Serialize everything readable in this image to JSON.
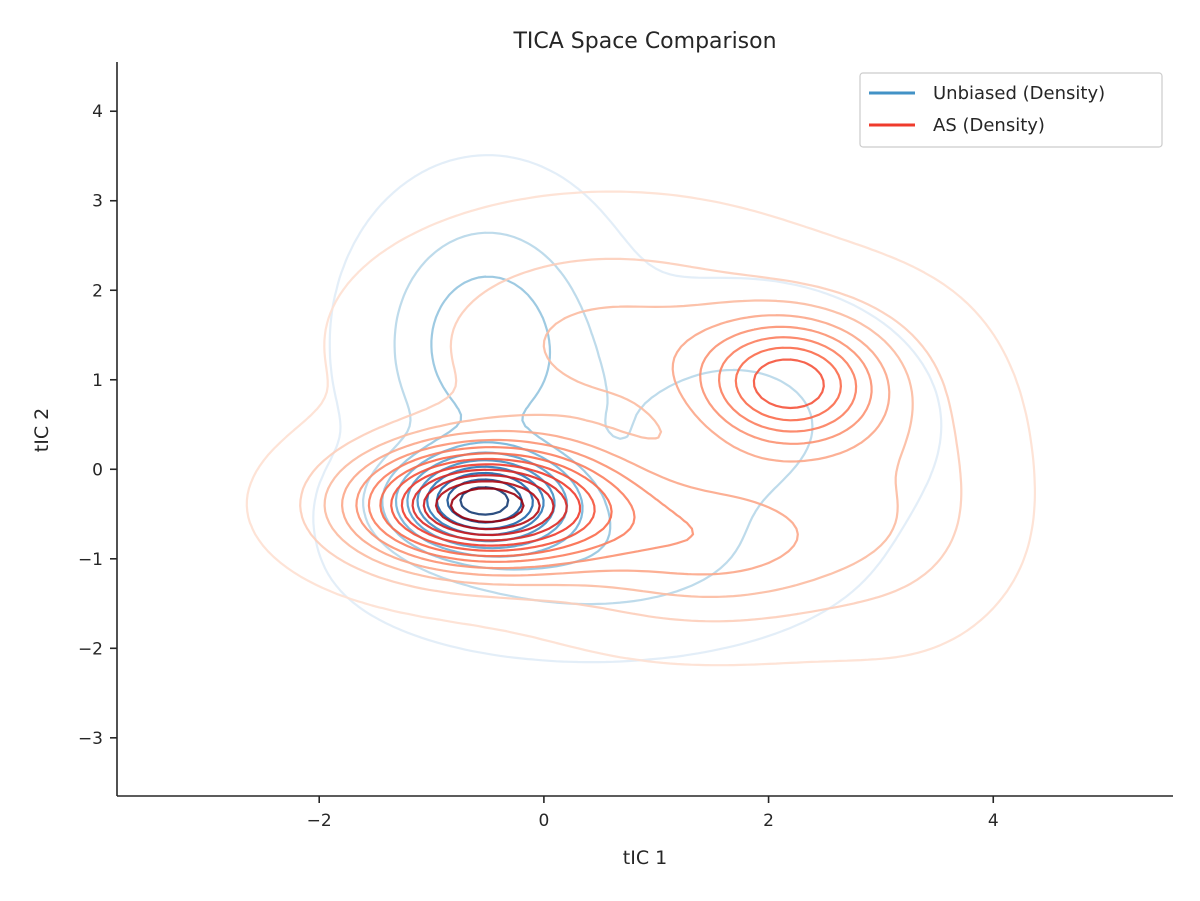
{
  "chart_data": {
    "type": "contour",
    "title": "TICA Space Comparison",
    "xlabel": "tIC 1",
    "ylabel": "tIC 2",
    "xlim": [
      -3.8,
      5.6
    ],
    "ylim": [
      -3.65,
      4.55
    ],
    "xticks": [
      -2,
      0,
      2,
      4
    ],
    "yticks": [
      -3,
      -2,
      -1,
      0,
      1,
      2,
      3,
      4
    ],
    "xtick_labels": [
      "−2",
      "0",
      "2",
      "4"
    ],
    "ytick_labels": [
      "−3",
      "−2",
      "−1",
      "0",
      "1",
      "2",
      "3",
      "4"
    ],
    "grid": false,
    "legend_position": "top-right",
    "legend": [
      {
        "label": "Unbiased (Density)",
        "color": "#4292c6"
      },
      {
        "label": "AS (Density)",
        "color": "#ef3b2c"
      }
    ],
    "series": [
      {
        "name": "Unbiased (Density)",
        "colormap": "Blues",
        "levels": 10,
        "components": [
          {
            "weight": 1.0,
            "mean": [
              -0.55,
              -0.35
            ],
            "sd": [
              0.5,
              0.35
            ]
          },
          {
            "weight": 0.35,
            "mean": [
              -0.5,
              1.4
            ],
            "sd": [
              0.6,
              0.9
            ]
          },
          {
            "weight": 0.18,
            "mean": [
              1.7,
              0.5
            ],
            "sd": [
              0.9,
              0.8
            ]
          },
          {
            "weight": 0.2,
            "mean": [
              0.4,
              -1.0
            ],
            "sd": [
              1.1,
              0.55
            ]
          }
        ]
      },
      {
        "name": "AS (Density)",
        "colormap": "Reds",
        "levels": 13,
        "components": [
          {
            "weight": 1.0,
            "mean": [
              -0.55,
              -0.4
            ],
            "sd": [
              0.75,
              0.45
            ]
          },
          {
            "weight": 0.55,
            "mean": [
              2.2,
              0.95
            ],
            "sd": [
              0.55,
              0.5
            ]
          },
          {
            "weight": 0.3,
            "mean": [
              1.5,
              -0.8
            ],
            "sd": [
              1.0,
              0.6
            ]
          },
          {
            "weight": 0.2,
            "mean": [
              0.6,
              1.4
            ],
            "sd": [
              1.2,
              0.8
            ]
          },
          {
            "weight": 0.12,
            "mean": [
              3.2,
              0.0
            ],
            "sd": [
              0.6,
              1.0
            ]
          }
        ]
      }
    ]
  }
}
